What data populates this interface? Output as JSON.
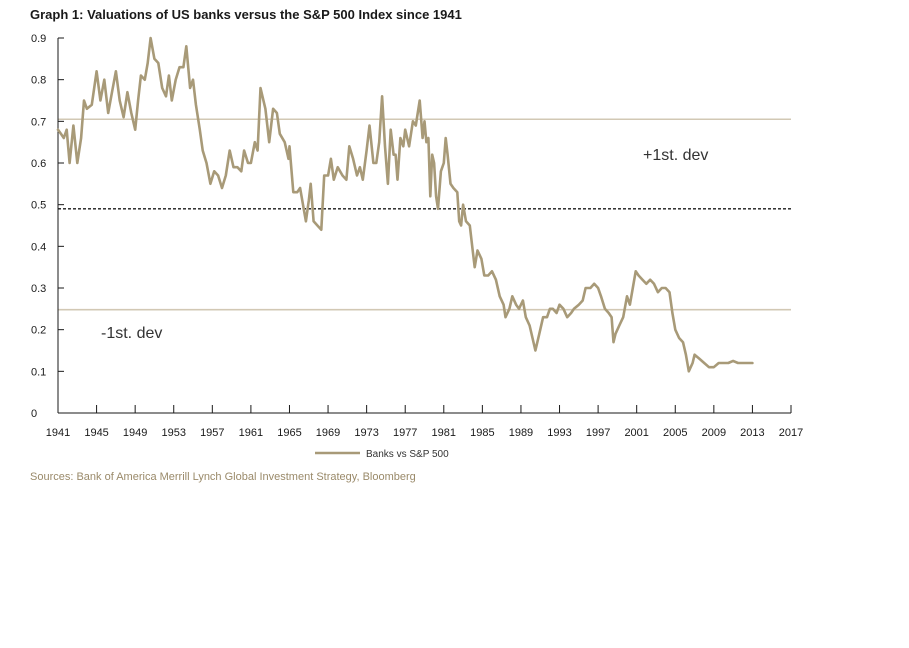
{
  "chart_data": {
    "type": "line",
    "title": "Graph 1: Valuations of US banks versus the S&P 500 Index since 1941",
    "xlabel": "",
    "ylabel": "",
    "xlim": [
      1941,
      2017
    ],
    "ylim": [
      0,
      0.9
    ],
    "x_ticks": [
      "1941",
      "1945",
      "1949",
      "1953",
      "1957",
      "1961",
      "1965",
      "1969",
      "1973",
      "1977",
      "1981",
      "1985",
      "1989",
      "1993",
      "1997",
      "2001",
      "2005",
      "2009",
      "2013",
      "2017"
    ],
    "y_ticks": [
      "0",
      "0.1",
      "0.2",
      "0.3",
      "0.4",
      "0.5",
      "0.6",
      "0.7",
      "0.8",
      "0.9"
    ],
    "series": [
      {
        "name": "Banks vs S&P 500",
        "color": "#a89a78",
        "points": [
          [
            1941.0,
            0.68
          ],
          [
            1941.3,
            0.67
          ],
          [
            1941.6,
            0.66
          ],
          [
            1941.9,
            0.68
          ],
          [
            1942.2,
            0.6
          ],
          [
            1942.6,
            0.69
          ],
          [
            1943.0,
            0.6
          ],
          [
            1943.4,
            0.66
          ],
          [
            1943.7,
            0.75
          ],
          [
            1944.0,
            0.73
          ],
          [
            1944.5,
            0.74
          ],
          [
            1945.0,
            0.82
          ],
          [
            1945.4,
            0.75
          ],
          [
            1945.8,
            0.8
          ],
          [
            1946.2,
            0.72
          ],
          [
            1946.6,
            0.77
          ],
          [
            1947.0,
            0.82
          ],
          [
            1947.4,
            0.75
          ],
          [
            1947.8,
            0.71
          ],
          [
            1948.2,
            0.77
          ],
          [
            1948.6,
            0.72
          ],
          [
            1949.0,
            0.68
          ],
          [
            1949.3,
            0.75
          ],
          [
            1949.6,
            0.81
          ],
          [
            1950.0,
            0.8
          ],
          [
            1950.3,
            0.84
          ],
          [
            1950.6,
            0.9
          ],
          [
            1951.0,
            0.85
          ],
          [
            1951.4,
            0.84
          ],
          [
            1951.8,
            0.78
          ],
          [
            1952.2,
            0.76
          ],
          [
            1952.5,
            0.81
          ],
          [
            1952.8,
            0.75
          ],
          [
            1953.2,
            0.8
          ],
          [
            1953.6,
            0.83
          ],
          [
            1954.0,
            0.83
          ],
          [
            1954.3,
            0.88
          ],
          [
            1954.7,
            0.78
          ],
          [
            1955.0,
            0.8
          ],
          [
            1955.3,
            0.74
          ],
          [
            1955.7,
            0.68
          ],
          [
            1956.0,
            0.63
          ],
          [
            1956.4,
            0.6
          ],
          [
            1956.8,
            0.55
          ],
          [
            1957.2,
            0.58
          ],
          [
            1957.6,
            0.57
          ],
          [
            1958.0,
            0.54
          ],
          [
            1958.4,
            0.57
          ],
          [
            1958.8,
            0.63
          ],
          [
            1959.2,
            0.59
          ],
          [
            1959.6,
            0.59
          ],
          [
            1960.0,
            0.58
          ],
          [
            1960.3,
            0.63
          ],
          [
            1960.7,
            0.6
          ],
          [
            1961.0,
            0.6
          ],
          [
            1961.4,
            0.65
          ],
          [
            1961.7,
            0.63
          ],
          [
            1962.0,
            0.78
          ],
          [
            1962.5,
            0.73
          ],
          [
            1962.9,
            0.65
          ],
          [
            1963.3,
            0.73
          ],
          [
            1963.7,
            0.72
          ],
          [
            1964.0,
            0.67
          ],
          [
            1964.5,
            0.65
          ],
          [
            1964.9,
            0.61
          ],
          [
            1965.0,
            0.64
          ],
          [
            1965.4,
            0.53
          ],
          [
            1965.8,
            0.53
          ],
          [
            1966.1,
            0.54
          ],
          [
            1966.4,
            0.5
          ],
          [
            1966.7,
            0.46
          ],
          [
            1967.0,
            0.51
          ],
          [
            1967.2,
            0.55
          ],
          [
            1967.5,
            0.46
          ],
          [
            1967.9,
            0.45
          ],
          [
            1968.3,
            0.44
          ],
          [
            1968.6,
            0.57
          ],
          [
            1969.0,
            0.57
          ],
          [
            1969.3,
            0.61
          ],
          [
            1969.6,
            0.56
          ],
          [
            1970.0,
            0.59
          ],
          [
            1970.5,
            0.57
          ],
          [
            1970.9,
            0.56
          ],
          [
            1971.2,
            0.64
          ],
          [
            1971.6,
            0.61
          ],
          [
            1972.0,
            0.57
          ],
          [
            1972.3,
            0.59
          ],
          [
            1972.6,
            0.56
          ],
          [
            1973.0,
            0.63
          ],
          [
            1973.3,
            0.69
          ],
          [
            1973.7,
            0.6
          ],
          [
            1974.0,
            0.6
          ],
          [
            1974.3,
            0.65
          ],
          [
            1974.6,
            0.76
          ],
          [
            1974.9,
            0.64
          ],
          [
            1975.2,
            0.55
          ],
          [
            1975.5,
            0.68
          ],
          [
            1975.8,
            0.62
          ],
          [
            1976.0,
            0.62
          ],
          [
            1976.2,
            0.56
          ],
          [
            1976.5,
            0.66
          ],
          [
            1976.8,
            0.64
          ],
          [
            1977.0,
            0.68
          ],
          [
            1977.4,
            0.64
          ],
          [
            1977.8,
            0.7
          ],
          [
            1978.1,
            0.69
          ],
          [
            1978.5,
            0.75
          ],
          [
            1978.8,
            0.66
          ],
          [
            1979.0,
            0.7
          ],
          [
            1979.2,
            0.65
          ],
          [
            1979.4,
            0.66
          ],
          [
            1979.6,
            0.52
          ],
          [
            1979.8,
            0.62
          ],
          [
            1980.0,
            0.6
          ],
          [
            1980.2,
            0.52
          ],
          [
            1980.4,
            0.49
          ],
          [
            1980.7,
            0.58
          ],
          [
            1981.0,
            0.6
          ],
          [
            1981.2,
            0.66
          ],
          [
            1981.4,
            0.62
          ],
          [
            1981.7,
            0.55
          ],
          [
            1982.0,
            0.54
          ],
          [
            1982.4,
            0.53
          ],
          [
            1982.6,
            0.46
          ],
          [
            1982.8,
            0.45
          ],
          [
            1983.0,
            0.5
          ],
          [
            1983.3,
            0.46
          ],
          [
            1983.7,
            0.45
          ],
          [
            1984.0,
            0.39
          ],
          [
            1984.2,
            0.35
          ],
          [
            1984.5,
            0.39
          ],
          [
            1984.9,
            0.37
          ],
          [
            1985.2,
            0.33
          ],
          [
            1985.6,
            0.33
          ],
          [
            1986.0,
            0.34
          ],
          [
            1986.4,
            0.32
          ],
          [
            1986.8,
            0.28
          ],
          [
            1987.2,
            0.26
          ],
          [
            1987.4,
            0.23
          ],
          [
            1987.8,
            0.25
          ],
          [
            1988.1,
            0.28
          ],
          [
            1988.5,
            0.26
          ],
          [
            1988.8,
            0.25
          ],
          [
            1989.2,
            0.27
          ],
          [
            1989.5,
            0.23
          ],
          [
            1989.9,
            0.21
          ],
          [
            1990.2,
            0.18
          ],
          [
            1990.5,
            0.15
          ],
          [
            1990.9,
            0.19
          ],
          [
            1991.3,
            0.23
          ],
          [
            1991.7,
            0.23
          ],
          [
            1992.0,
            0.25
          ],
          [
            1992.3,
            0.25
          ],
          [
            1992.7,
            0.24
          ],
          [
            1993.0,
            0.26
          ],
          [
            1993.4,
            0.25
          ],
          [
            1993.8,
            0.23
          ],
          [
            1994.2,
            0.24
          ],
          [
            1994.5,
            0.25
          ],
          [
            1995.0,
            0.26
          ],
          [
            1995.4,
            0.27
          ],
          [
            1995.7,
            0.3
          ],
          [
            1996.2,
            0.3
          ],
          [
            1996.6,
            0.31
          ],
          [
            1997.0,
            0.3
          ],
          [
            1997.3,
            0.28
          ],
          [
            1997.7,
            0.25
          ],
          [
            1998.1,
            0.24
          ],
          [
            1998.4,
            0.23
          ],
          [
            1998.6,
            0.17
          ],
          [
            1998.8,
            0.19
          ],
          [
            1999.2,
            0.21
          ],
          [
            1999.6,
            0.23
          ],
          [
            2000.0,
            0.28
          ],
          [
            2000.3,
            0.26
          ],
          [
            2000.6,
            0.3
          ],
          [
            2000.9,
            0.34
          ],
          [
            2001.2,
            0.33
          ],
          [
            2001.6,
            0.32
          ],
          [
            2002.0,
            0.31
          ],
          [
            2002.4,
            0.32
          ],
          [
            2002.8,
            0.31
          ],
          [
            2003.2,
            0.29
          ],
          [
            2003.6,
            0.3
          ],
          [
            2004.0,
            0.3
          ],
          [
            2004.4,
            0.29
          ],
          [
            2004.7,
            0.24
          ],
          [
            2005.0,
            0.2
          ],
          [
            2005.4,
            0.18
          ],
          [
            2005.8,
            0.17
          ],
          [
            2006.1,
            0.14
          ],
          [
            2006.4,
            0.1
          ],
          [
            2006.8,
            0.12
          ],
          [
            2007.0,
            0.14
          ],
          [
            2007.5,
            0.13
          ],
          [
            2008.0,
            0.12
          ],
          [
            2008.5,
            0.11
          ],
          [
            2009.0,
            0.11
          ],
          [
            2009.5,
            0.12
          ],
          [
            2010.0,
            0.12
          ],
          [
            2010.5,
            0.12
          ],
          [
            2011.0,
            0.125
          ],
          [
            2011.5,
            0.12
          ],
          [
            2012.0,
            0.12
          ],
          [
            2012.5,
            0.12
          ],
          [
            2013.0,
            0.12
          ]
        ]
      }
    ],
    "reference_lines": [
      {
        "value": 0.705,
        "style": "solid",
        "color": "#d2c8b4",
        "label": "+1st. dev"
      },
      {
        "value": 0.49,
        "style": "dashed",
        "color": "#1a1a1a",
        "label": ""
      },
      {
        "value": 0.248,
        "style": "solid",
        "color": "#d2c8b4",
        "label": "-1st. dev"
      }
    ],
    "legend": {
      "entries": [
        "Banks vs S&P 500"
      ],
      "position": "bottom-center"
    },
    "grid": false
  },
  "source_text": "Sources: Bank of America Merrill Lynch Global Investment Strategy, Bloomberg"
}
